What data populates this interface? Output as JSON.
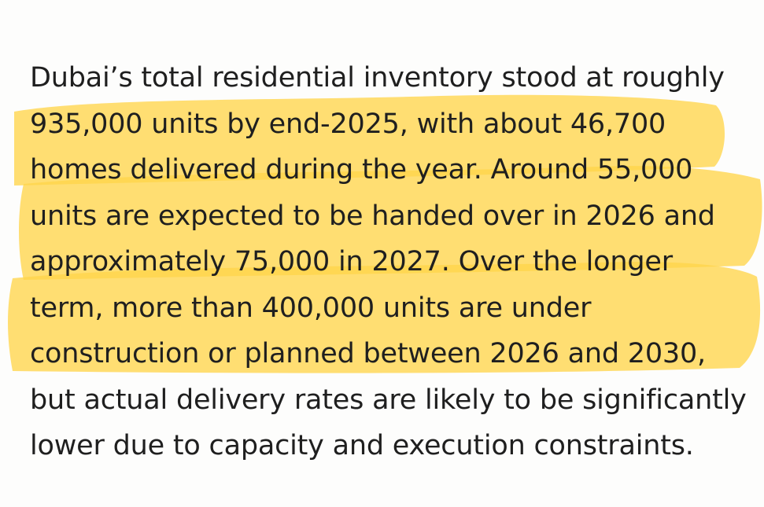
{
  "paragraph": {
    "lines": [
      "Dubai’s total residential inventory stood at roughly",
      "935,000 units by end-2025, with about 46,700",
      "homes delivered during the year. Around 55,000",
      "units are expected to be handed over in 2026 and",
      "approximately 75,000 in 2027. Over the longer",
      "term, more than 400,000 units are under",
      "construction or planned between 2026 and 2030,",
      "but actual delivery rates are likely to be significantly",
      "lower due to capacity and execution constraints."
    ]
  },
  "highlight": {
    "color": "#ffd54a",
    "first_line": 2,
    "last_line": 7
  }
}
